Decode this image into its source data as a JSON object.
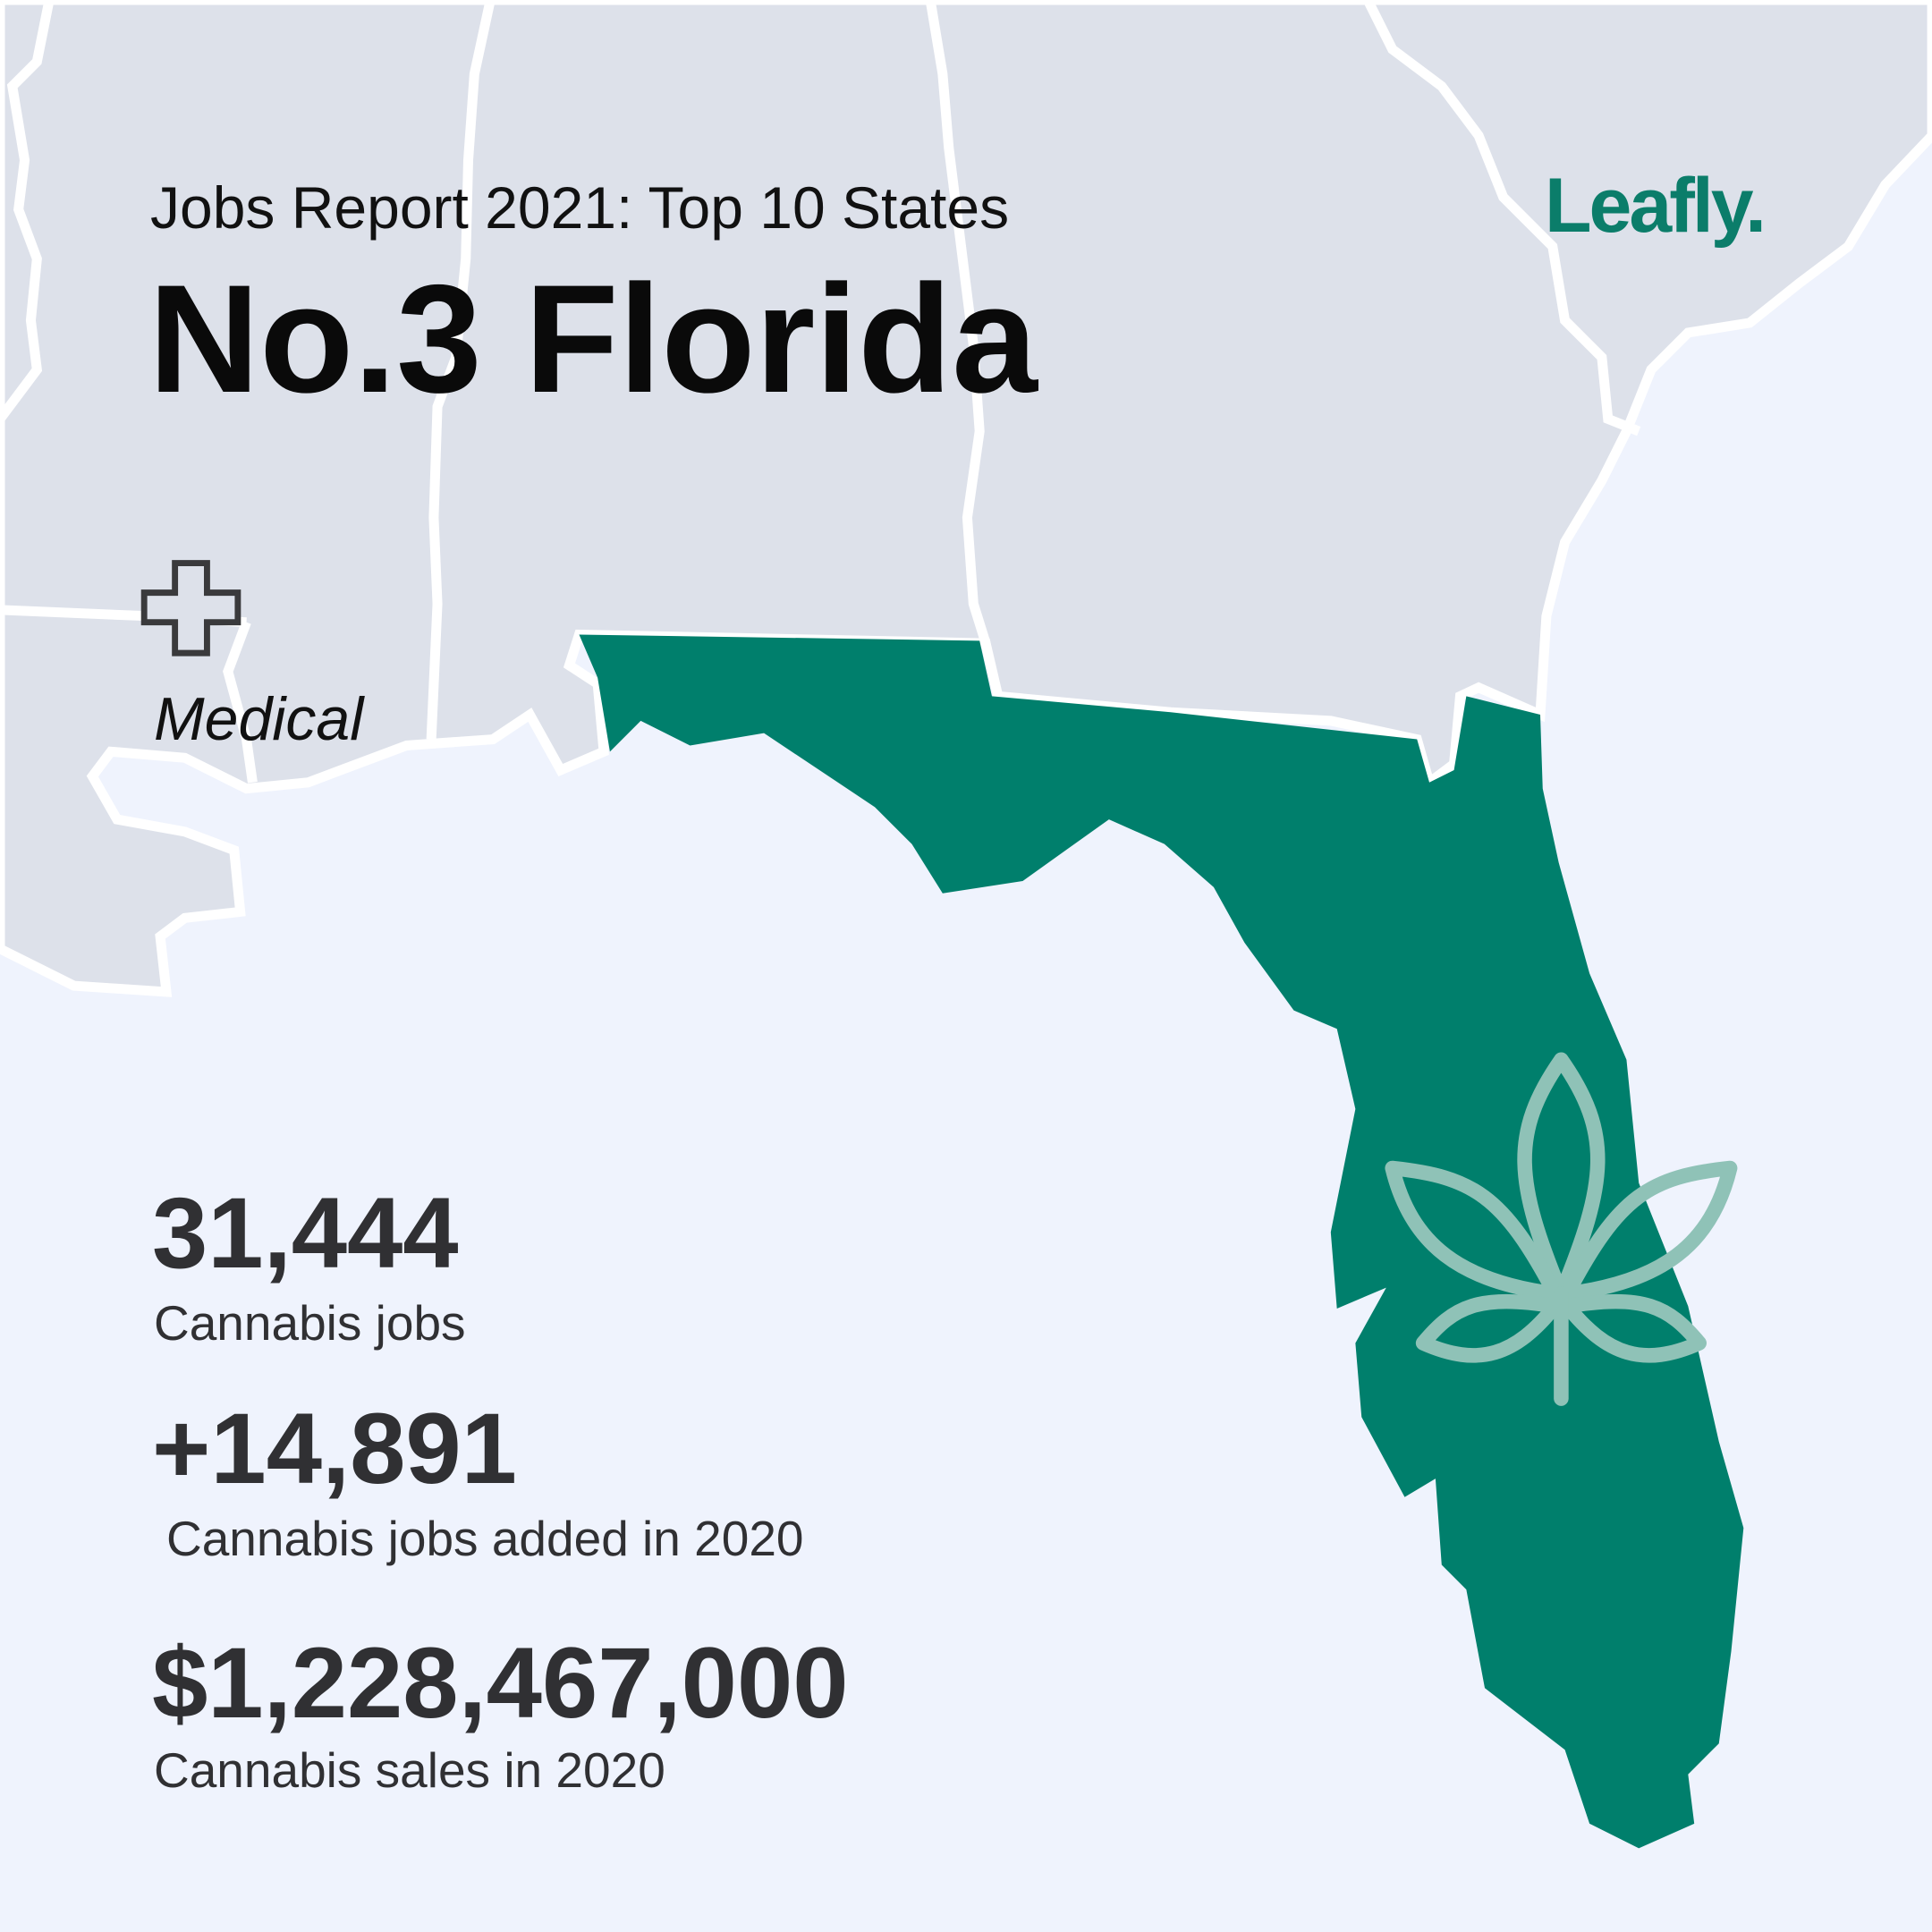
{
  "header": {
    "kicker": "Jobs Report 2021: Top 10 States",
    "title": "No.3 Florida",
    "brand": "Leafly."
  },
  "status": "Medical",
  "stats": [
    {
      "value": "31,444",
      "label": "Cannabis jobs"
    },
    {
      "value": "+14,891",
      "label": "Cannabis jobs added in 2020"
    },
    {
      "value": "$1,228,467,000",
      "label": "Cannabis sales in 2020"
    }
  ]
}
